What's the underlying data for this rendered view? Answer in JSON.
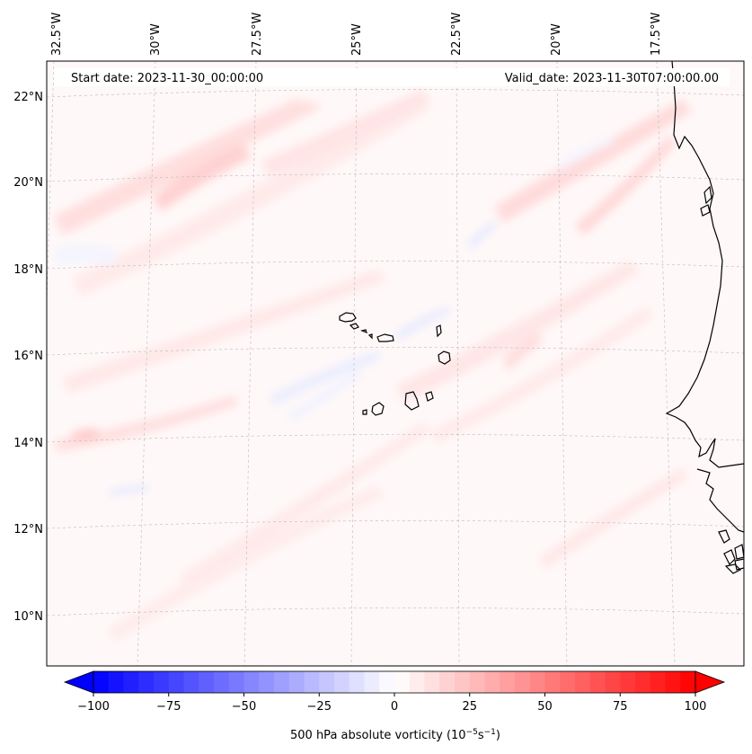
{
  "header": {
    "start_date": "Start date: 2023-11-30_00:00:00",
    "valid_date": "Valid_date: 2023-11-30T07:00:00.00"
  },
  "map": {
    "projection": "lambert-conformal",
    "lon_labels": [
      "32.5°W",
      "30°W",
      "27.5°W",
      "25°W",
      "22.5°W",
      "20°W",
      "17.5°W"
    ],
    "lat_labels": [
      "22°N",
      "20°N",
      "18°N",
      "16°N",
      "14°N",
      "12°N",
      "10°N"
    ],
    "features": [
      "Cape Verde Islands",
      "West African coastline"
    ],
    "gridlines": true
  },
  "colorbar": {
    "label": "500 hPa absolute vorticity (10",
    "label_exp1": "−5",
    "label_mid": "s",
    "label_exp2": "−1",
    "label_end": ")",
    "ticks": [
      "−100",
      "−75",
      "−50",
      "−25",
      "0",
      "25",
      "50",
      "75",
      "100"
    ],
    "min": -100,
    "max": 100,
    "colormap": "bwr",
    "extend": "both"
  },
  "colors": {
    "negative": "#0000ff",
    "neutral": "#ffffff",
    "positive": "#ff0000",
    "coast": "#000000"
  }
}
